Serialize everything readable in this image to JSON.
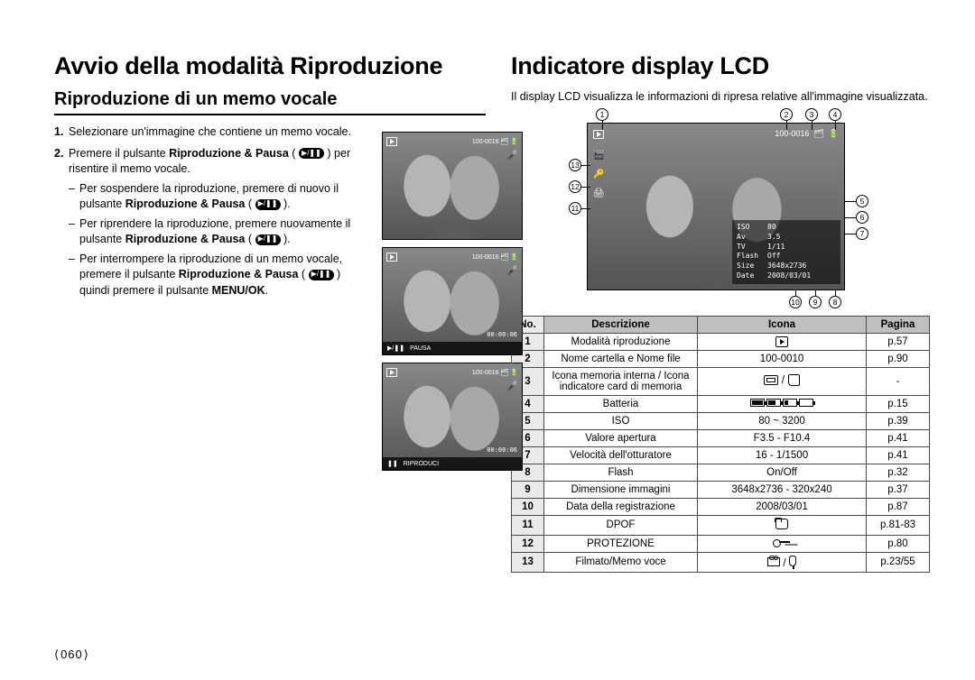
{
  "page_number": "060",
  "left": {
    "title": "Avvio della modalità Riproduzione",
    "subtitle": "Riproduzione di un memo vocale",
    "step1_num": "1.",
    "step1": "Selezionare un'immagine che contiene un memo vocale.",
    "step2_num": "2.",
    "step2_a": "Premere il pulsante ",
    "step2_b": "Riproduzione & Pausa",
    "step2_c": " ( ",
    "step2_d": " ) per risentire il memo vocale.",
    "sub1_a": "Per sospendere la riproduzione, premere di nuovo il pulsante ",
    "sub1_b": "Riproduzione & Pausa",
    "sub1_c": " ( ",
    "sub1_d": " ).",
    "sub2_a": "Per riprendere la riproduzione, premere nuovamente il pulsante ",
    "sub2_b": "Riproduzione & Pausa",
    "sub2_c": " ( ",
    "sub2_d": " ).",
    "sub3_a": "Per interrompere la riproduzione di un memo vocale, premere il pulsante ",
    "sub3_b": "Riproduzione & Pausa",
    "sub3_c": " ( ",
    "sub3_d": " ) quindi premere il pulsante ",
    "sub3_e": "MENU/OK",
    "sub3_f": ".",
    "thumbs": {
      "folder": "100-0016",
      "time1": "00:00:06",
      "label_pause": "PAUSA",
      "label_play": "RIPRODUCI"
    }
  },
  "right": {
    "title": "Indicatore display LCD",
    "intro": "Il display LCD visualizza le informazioni di ripresa relative all'immagine visualizzata.",
    "osd": {
      "folder": "100-0016",
      "iso_k": "ISO",
      "iso_v": "80",
      "av_k": "Av",
      "av_v": "3.5",
      "tv_k": "TV",
      "tv_v": "1/11",
      "flash_k": "Flash",
      "flash_v": "Off",
      "size_k": "Size",
      "size_v": "3648x2736",
      "date_k": "Date",
      "date_v": "2008/03/01"
    },
    "table": {
      "h_no": "No.",
      "h_desc": "Descrizione",
      "h_icon": "Icona",
      "h_page": "Pagina",
      "rows": [
        {
          "n": "1",
          "d": "Modalità riproduzione",
          "i": "play",
          "p": "p.57"
        },
        {
          "n": "2",
          "d": "Nome cartella e Nome file",
          "i": "100-0010",
          "p": "p.90"
        },
        {
          "n": "3",
          "d": "Icona memoria interna / Icona indicatore card di memoria",
          "i": "mem",
          "p": "-"
        },
        {
          "n": "4",
          "d": "Batteria",
          "i": "batt",
          "p": "p.15"
        },
        {
          "n": "5",
          "d": "ISO",
          "i": "80 ~ 3200",
          "p": "p.39"
        },
        {
          "n": "6",
          "d": "Valore apertura",
          "i": "F3.5 - F10.4",
          "p": "p.41"
        },
        {
          "n": "7",
          "d": "Velocità dell'otturatore",
          "i": "16 - 1/1500",
          "p": "p.41"
        },
        {
          "n": "8",
          "d": "Flash",
          "i": "On/Off",
          "p": "p.32"
        },
        {
          "n": "9",
          "d": "Dimensione immagini",
          "i": "3648x2736 - 320x240",
          "p": "p.37"
        },
        {
          "n": "10",
          "d": "Data della registrazione",
          "i": "2008/03/01",
          "p": "p.87"
        },
        {
          "n": "11",
          "d": "DPOF",
          "i": "dpof",
          "p": "p.81-83"
        },
        {
          "n": "12",
          "d": "PROTEZIONE",
          "i": "key",
          "p": "p.80"
        },
        {
          "n": "13",
          "d": "Filmato/Memo voce",
          "i": "filmmic",
          "p": "p.23/55"
        }
      ]
    }
  }
}
